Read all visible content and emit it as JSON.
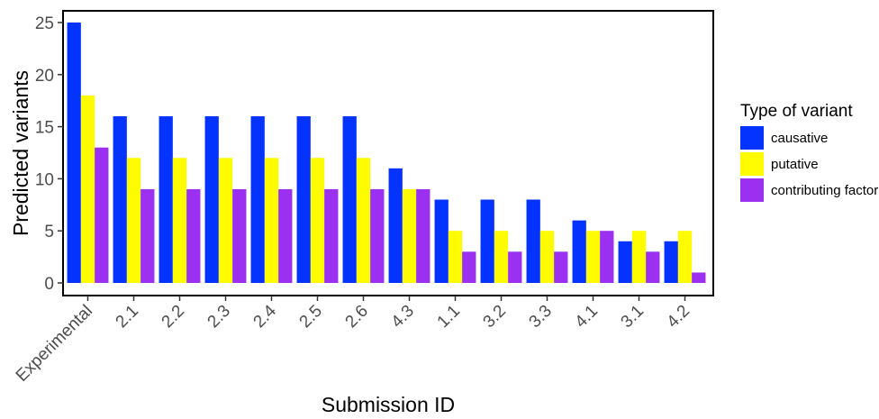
{
  "chart_data": {
    "type": "bar",
    "title": "",
    "xlabel": "Submission ID",
    "ylabel": "Predicted variants",
    "ylim": [
      0,
      26
    ],
    "yticks": [
      0,
      5,
      10,
      15,
      20,
      25
    ],
    "grid": false,
    "legend_position": "right",
    "legend_title": "Type of variant",
    "categories": [
      "Experimental",
      "2.1",
      "2.2",
      "2.3",
      "2.4",
      "2.5",
      "2.6",
      "4.3",
      "1.1",
      "3.2",
      "3.3",
      "4.1",
      "3.1",
      "4.2"
    ],
    "series": [
      {
        "name": "causative",
        "color": "#0433ff",
        "values": [
          25,
          16,
          16,
          16,
          16,
          16,
          16,
          11,
          8,
          8,
          8,
          6,
          4,
          4
        ]
      },
      {
        "name": "putative",
        "color": "#fffb00",
        "values": [
          18,
          12,
          12,
          12,
          12,
          12,
          12,
          9,
          5,
          5,
          5,
          5,
          5,
          5
        ]
      },
      {
        "name": "contributing factor",
        "color": "#9b30f0",
        "values": [
          13,
          9,
          9,
          9,
          9,
          9,
          9,
          9,
          3,
          3,
          3,
          5,
          3,
          1
        ]
      }
    ]
  }
}
